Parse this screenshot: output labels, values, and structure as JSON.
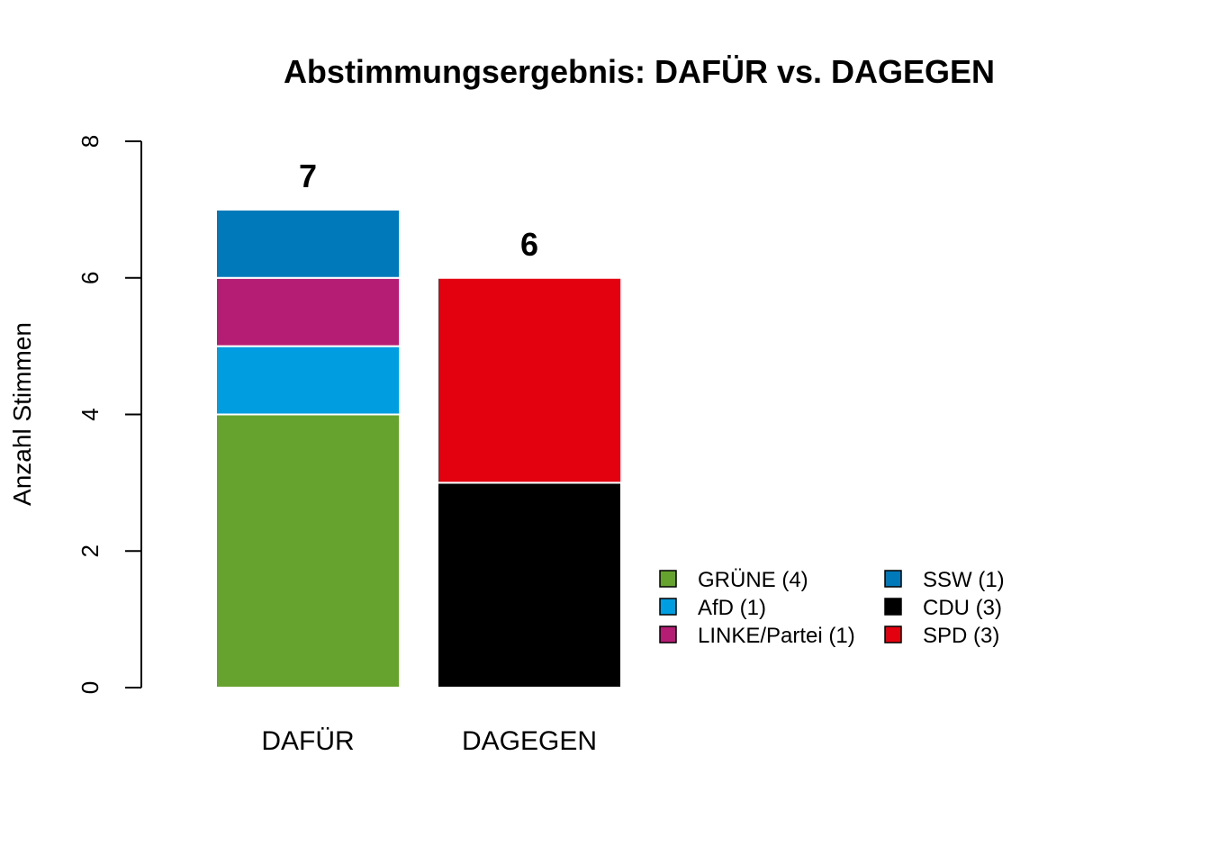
{
  "chart_data": {
    "type": "bar",
    "stacked": true,
    "title": "Abstimmungsergebnis: DAFÜR vs. DAGEGEN",
    "xlabel": "",
    "ylabel": "Anzahl Stimmen",
    "ylim": [
      0,
      8
    ],
    "yticks": [
      0,
      2,
      4,
      6,
      8
    ],
    "grid": false,
    "legend_position": "bottom-right",
    "categories": [
      "DAFÜR",
      "DAGEGEN"
    ],
    "totals": [
      "7",
      "6"
    ],
    "series": [
      {
        "name": "GRÜNE (4)",
        "color": "#66A22E",
        "values": [
          4,
          0
        ]
      },
      {
        "name": "AfD (1)",
        "color": "#009EE0",
        "values": [
          1,
          0
        ]
      },
      {
        "name": "LINKE/Partei (1)",
        "color": "#B51D75",
        "values": [
          1,
          0
        ]
      },
      {
        "name": "SSW (1)",
        "color": "#0079BA",
        "values": [
          1,
          0
        ]
      },
      {
        "name": "CDU (3)",
        "color": "#000000",
        "values": [
          0,
          3
        ]
      },
      {
        "name": "SPD (3)",
        "color": "#E3000F",
        "values": [
          0,
          3
        ]
      }
    ]
  }
}
